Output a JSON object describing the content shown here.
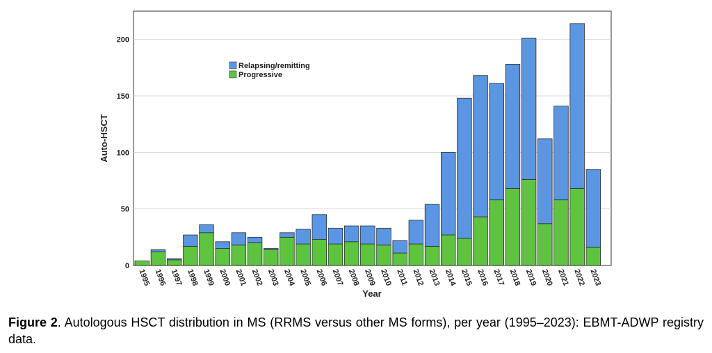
{
  "chart_data": {
    "type": "bar",
    "stacked": true,
    "xlabel": "Year",
    "ylabel": "Auto-HSCT",
    "ylim": [
      0,
      225
    ],
    "yticks": [
      0,
      50,
      100,
      150,
      200
    ],
    "grid": "horizontal",
    "legend_position": "upper-left",
    "categories": [
      "1995",
      "1996",
      "1997",
      "1998",
      "1999",
      "2000",
      "2001",
      "2002",
      "2003",
      "2004",
      "2005",
      "2006",
      "2007",
      "2008",
      "2009",
      "2010",
      "2011",
      "2012",
      "2013",
      "2014",
      "2015",
      "2016",
      "2017",
      "2018",
      "2019",
      "2020",
      "2021",
      "2022",
      "2023"
    ],
    "series": [
      {
        "name": "Progressive",
        "color": "#5ec440",
        "values": [
          4,
          12,
          5,
          17,
          29,
          15,
          18,
          20,
          14,
          25,
          19,
          23,
          19,
          21,
          19,
          18,
          11,
          19,
          17,
          27,
          24,
          43,
          58,
          68,
          76,
          37,
          58,
          68,
          16
        ]
      },
      {
        "name": "Relapsing/remitting",
        "color": "#5b96e3",
        "values": [
          0,
          2,
          1,
          10,
          7,
          6,
          11,
          5,
          1,
          4,
          13,
          22,
          14,
          14,
          16,
          15,
          11,
          21,
          37,
          73,
          124,
          125,
          103,
          110,
          125,
          75,
          83,
          146,
          69
        ]
      }
    ]
  },
  "caption": {
    "label": "Figure 2",
    "text": ". Autologous HSCT distribution in MS (RRMS versus other MS forms), per year (1995–2023): EBMT-ADWP registry data."
  }
}
